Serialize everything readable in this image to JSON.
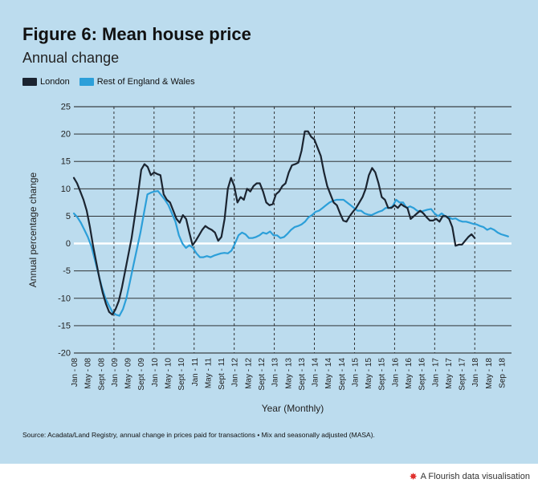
{
  "title": "Figure 6: Mean house price",
  "subtitle": "Annual change",
  "source": "Source: Acadata/Land Registry, annual change in prices paid for transactions  • Mix and seasonally adjusted (MASA).",
  "footer": "A Flourish data visualisation",
  "chart_data": {
    "type": "line",
    "xlabel": "Year (Monthly)",
    "ylabel": "Annual percentage change",
    "ylim": [
      -20,
      25
    ],
    "yticks": [
      25,
      20,
      15,
      10,
      5,
      0,
      -5,
      -10,
      -15,
      -20
    ],
    "grid": true,
    "legend_position": "top-left",
    "x_start": "Jan - 08",
    "x_end": "Dec - 18",
    "xtick_labels": [
      "Jan - 08",
      "May - 08",
      "Sept - 08",
      "Jan - 09",
      "May - 09",
      "Sept - 09",
      "Jan - 10",
      "May - 10",
      "Sept - 10",
      "Jan - 11",
      "May - 11",
      "Sept - 11",
      "Jan - 12",
      "May - 12",
      "Sept - 12",
      "Jan - 13",
      "May - 13",
      "Sept - 13",
      "Jan - 14",
      "May - 14",
      "Sept - 14",
      "Jan - 15",
      "May - 15",
      "Sept - 15",
      "Jan - 16",
      "May - 16",
      "Sept - 16",
      "Jan - 17",
      "May - 17",
      "Sept - 17",
      "Jan - 18",
      "May - 18",
      "Sep - 18"
    ],
    "series": [
      {
        "name": "London",
        "color": "#1b2430",
        "values": [
          12,
          11,
          9.5,
          8,
          6,
          3,
          -0.5,
          -3.5,
          -6.5,
          -9,
          -11,
          -12.5,
          -13,
          -12,
          -10.5,
          -8,
          -5,
          -2,
          1,
          5,
          9,
          13.5,
          14.5,
          14,
          12.5,
          13,
          12.7,
          12.5,
          9,
          8,
          7.5,
          6,
          4.5,
          3.8,
          5.2,
          4.5,
          2,
          -0.3,
          0.5,
          1.5,
          2.5,
          3.2,
          2.8,
          2.5,
          2,
          0.5,
          1.2,
          4.5,
          10,
          12,
          10.5,
          7.5,
          8.5,
          8,
          10,
          9.5,
          10.5,
          11,
          11,
          9.5,
          7.5,
          7,
          7.2,
          9,
          9.5,
          10.5,
          11,
          13,
          14.3,
          14.5,
          14.8,
          17,
          20.5,
          20.5,
          19.5,
          19,
          17.5,
          16,
          13,
          10.5,
          9,
          7.5,
          7,
          5.5,
          4.2,
          4,
          5,
          5.8,
          6.5,
          7.5,
          8.5,
          10,
          12.5,
          13.8,
          13,
          11,
          8.5,
          8,
          6.5,
          6.5,
          7,
          6.5,
          7.2,
          6.8,
          6.5,
          4.5,
          5,
          5.5,
          6,
          5.5,
          4.8,
          4.2,
          4.2,
          4.5,
          4,
          5,
          5,
          4.5,
          3,
          -0.4,
          -0.2,
          -0.2,
          0.5,
          1.2,
          1.7,
          1
        ],
        "cap": 120
      },
      {
        "name": "Rest of England & Wales",
        "color": "#2c9fd9",
        "values": [
          5.5,
          4.8,
          3.8,
          2.5,
          1.2,
          -0.5,
          -3,
          -5.5,
          -8,
          -10,
          -11.3,
          -12.5,
          -13,
          -13.2,
          -12,
          -10,
          -7,
          -4,
          -1,
          2,
          5.5,
          9,
          9.3,
          9.5,
          9.6,
          8.8,
          8,
          7,
          5.5,
          4,
          1.5,
          0,
          -0.8,
          -0.3,
          -0.8,
          -1.8,
          -2.5,
          -2.5,
          -2.3,
          -2.5,
          -2.2,
          -2,
          -1.8,
          -1.7,
          -1.8,
          -1.3,
          0,
          1.5,
          2,
          1.7,
          1,
          1,
          1.2,
          1.5,
          2,
          1.8,
          2.2,
          1.5,
          1.5,
          1,
          1.2,
          1.8,
          2.5,
          3,
          3.2,
          3.5,
          4,
          4.8,
          5.2,
          5.8,
          6,
          6.5,
          7,
          7.5,
          7.8,
          8,
          8,
          8,
          7.5,
          7,
          6.5,
          6,
          6,
          5.5,
          5.3,
          5.2,
          5.5,
          5.8,
          6,
          6.5,
          6.5,
          6.8,
          8,
          7.5,
          7.5,
          6.5,
          6.8,
          6.5,
          6,
          5.8,
          6,
          6.2,
          6.3,
          5.5,
          5,
          5.5,
          5,
          4.8,
          4.5,
          4.6,
          4.2,
          4,
          4,
          3.8,
          3.6,
          3.5,
          3.2,
          3,
          2.5,
          2.8,
          2.5,
          2,
          1.7,
          1.5,
          1.3
        ],
        "cap": 130
      }
    ]
  }
}
